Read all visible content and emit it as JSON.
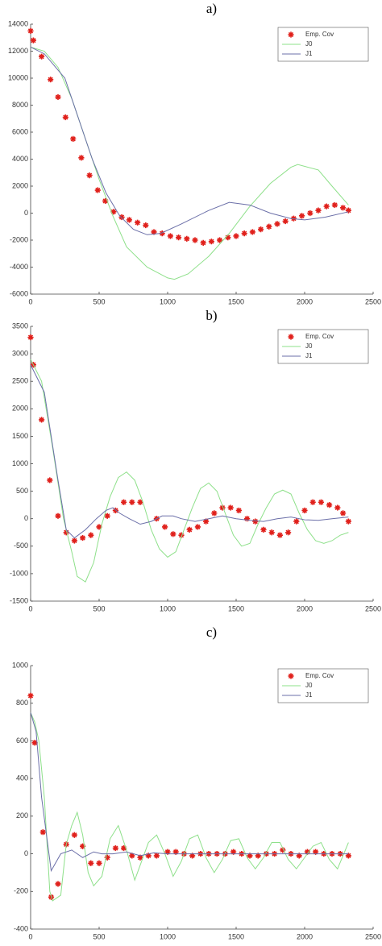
{
  "chart_data": [
    {
      "type": "line",
      "title": "a)",
      "xlim": [
        0,
        2500
      ],
      "ylim": [
        -6000,
        14000
      ],
      "xticks": [
        0,
        500,
        1000,
        1500,
        2000,
        2500
      ],
      "yticks": [
        -6000,
        -4000,
        -2000,
        0,
        2000,
        4000,
        6000,
        8000,
        10000,
        12000,
        14000
      ],
      "legend": "upper right",
      "series": [
        {
          "name": "Emp. Cov",
          "color": "#e0201b",
          "mode": "markers",
          "x": [
            0,
            20,
            80,
            145,
            200,
            255,
            310,
            370,
            430,
            490,
            545,
            605,
            665,
            720,
            780,
            840,
            900,
            960,
            1020,
            1080,
            1140,
            1200,
            1260,
            1320,
            1380,
            1440,
            1500,
            1560,
            1620,
            1680,
            1740,
            1800,
            1860,
            1920,
            1980,
            2040,
            2100,
            2160,
            2220,
            2280,
            2320
          ],
          "values": [
            13500,
            12800,
            11600,
            9900,
            8600,
            7100,
            5500,
            4100,
            2800,
            1700,
            900,
            100,
            -300,
            -500,
            -700,
            -900,
            -1400,
            -1500,
            -1700,
            -1800,
            -1900,
            -2000,
            -2200,
            -2100,
            -2000,
            -1800,
            -1700,
            -1500,
            -1400,
            -1200,
            -1000,
            -800,
            -600,
            -400,
            -200,
            0,
            200,
            500,
            600,
            400,
            200
          ]
        },
        {
          "name": "J0",
          "color": "#8ee08a",
          "mode": "lines",
          "x": [
            0,
            100,
            200,
            300,
            400,
            500,
            600,
            700,
            850,
            1000,
            1050,
            1150,
            1300,
            1450,
            1600,
            1750,
            1900,
            1950,
            2100,
            2200,
            2320
          ],
          "values": [
            12300,
            12000,
            10800,
            8500,
            5500,
            2500,
            -200,
            -2500,
            -4000,
            -4800,
            -4900,
            -4500,
            -3200,
            -1500,
            500,
            2200,
            3400,
            3600,
            3200,
            2000,
            600
          ]
        },
        {
          "name": "J1",
          "color": "#6b6fa8",
          "mode": "lines",
          "x": [
            0,
            100,
            250,
            350,
            450,
            550,
            650,
            750,
            850,
            950,
            1100,
            1300,
            1450,
            1600,
            1750,
            1900,
            2000,
            2150,
            2320
          ],
          "values": [
            12300,
            11800,
            10000,
            7000,
            4000,
            1500,
            -200,
            -1200,
            -1600,
            -1500,
            -800,
            200,
            800,
            600,
            0,
            -400,
            -500,
            -300,
            100
          ]
        }
      ]
    },
    {
      "type": "line",
      "title": "b)",
      "xlim": [
        0,
        2500
      ],
      "ylim": [
        -1500,
        3500
      ],
      "xticks": [
        0,
        500,
        1000,
        1500,
        2000,
        2500
      ],
      "yticks": [
        -1500,
        -1000,
        -500,
        0,
        500,
        1000,
        1500,
        2000,
        2500,
        3000,
        3500
      ],
      "legend": "upper right",
      "series": [
        {
          "name": "Emp. Cov",
          "color": "#e0201b",
          "mode": "markers",
          "x": [
            0,
            20,
            80,
            140,
            200,
            260,
            320,
            380,
            440,
            500,
            560,
            620,
            680,
            740,
            800,
            920,
            980,
            1040,
            1100,
            1160,
            1220,
            1280,
            1340,
            1400,
            1460,
            1520,
            1580,
            1640,
            1700,
            1760,
            1820,
            1880,
            1940,
            2000,
            2060,
            2120,
            2180,
            2240,
            2280,
            2320
          ],
          "values": [
            3300,
            2800,
            1800,
            700,
            50,
            -250,
            -400,
            -350,
            -300,
            -150,
            50,
            150,
            300,
            300,
            300,
            0,
            -150,
            -280,
            -300,
            -200,
            -150,
            -50,
            100,
            200,
            200,
            150,
            0,
            -50,
            -200,
            -250,
            -300,
            -250,
            -50,
            150,
            300,
            300,
            250,
            200,
            100,
            -50
          ]
        },
        {
          "name": "J0",
          "color": "#8ee08a",
          "mode": "lines",
          "x": [
            0,
            80,
            160,
            240,
            300,
            340,
            400,
            460,
            520,
            580,
            640,
            700,
            760,
            820,
            880,
            940,
            1000,
            1060,
            1120,
            1180,
            1240,
            1300,
            1360,
            1420,
            1480,
            1540,
            1600,
            1660,
            1720,
            1780,
            1840,
            1900,
            1960,
            2020,
            2080,
            2140,
            2200,
            2260,
            2320
          ],
          "values": [
            2900,
            2500,
            1300,
            0,
            -600,
            -1050,
            -1150,
            -800,
            -100,
            400,
            750,
            850,
            700,
            300,
            -200,
            -550,
            -700,
            -600,
            -200,
            200,
            550,
            650,
            500,
            100,
            -300,
            -500,
            -450,
            -100,
            200,
            450,
            520,
            450,
            100,
            -200,
            -400,
            -450,
            -400,
            -300,
            -250
          ]
        },
        {
          "name": "J1",
          "color": "#6b6fa8",
          "mode": "lines",
          "x": [
            0,
            100,
            200,
            260,
            320,
            400,
            480,
            550,
            600,
            650,
            720,
            800,
            880,
            960,
            1040,
            1100,
            1200,
            1300,
            1400,
            1500,
            1600,
            1700,
            1800,
            1900,
            2000,
            2100,
            2200,
            2320
          ],
          "values": [
            2800,
            2300,
            700,
            -200,
            -350,
            -200,
            0,
            150,
            200,
            100,
            0,
            -100,
            -50,
            50,
            50,
            0,
            -50,
            0,
            50,
            0,
            -30,
            -50,
            0,
            30,
            -20,
            -30,
            0,
            30
          ]
        }
      ]
    },
    {
      "type": "line",
      "title": "c)",
      "xlim": [
        0,
        2500
      ],
      "ylim": [
        -400,
        1000
      ],
      "xticks": [
        0,
        500,
        1000,
        1500,
        2000,
        2500
      ],
      "yticks": [
        -400,
        -200,
        0,
        200,
        400,
        600,
        800,
        1000
      ],
      "legend": "upper right",
      "series": [
        {
          "name": "Emp. Cov",
          "color": "#e0201b",
          "mode": "markers",
          "x": [
            0,
            30,
            90,
            150,
            200,
            260,
            320,
            380,
            440,
            500,
            560,
            620,
            680,
            740,
            800,
            860,
            920,
            1000,
            1060,
            1120,
            1180,
            1240,
            1300,
            1360,
            1420,
            1480,
            1540,
            1600,
            1660,
            1720,
            1780,
            1840,
            1900,
            1960,
            2020,
            2080,
            2140,
            2200,
            2260,
            2320
          ],
          "values": [
            840,
            590,
            115,
            -230,
            -160,
            50,
            100,
            40,
            -50,
            -50,
            -20,
            30,
            30,
            -10,
            -20,
            -10,
            -10,
            10,
            10,
            0,
            -10,
            0,
            0,
            0,
            0,
            10,
            0,
            -10,
            -10,
            0,
            0,
            20,
            0,
            -10,
            10,
            10,
            0,
            0,
            0,
            -10
          ]
        },
        {
          "name": "J0",
          "color": "#8ee08a",
          "mode": "lines",
          "x": [
            0,
            30,
            60,
            100,
            140,
            160,
            220,
            260,
            300,
            340,
            380,
            420,
            460,
            520,
            580,
            640,
            700,
            760,
            800,
            860,
            920,
            980,
            1040,
            1100,
            1160,
            1220,
            1280,
            1340,
            1400,
            1460,
            1520,
            1580,
            1640,
            1700,
            1760,
            1820,
            1880,
            1940,
            2000,
            2060,
            2120,
            2180,
            2240,
            2320
          ],
          "values": [
            750,
            700,
            600,
            300,
            -200,
            -250,
            -220,
            50,
            150,
            220,
            100,
            -100,
            -170,
            -120,
            80,
            150,
            20,
            -140,
            -60,
            60,
            100,
            0,
            -120,
            -40,
            80,
            100,
            -20,
            -100,
            -30,
            70,
            80,
            -20,
            -80,
            -20,
            60,
            60,
            -30,
            -80,
            -20,
            40,
            60,
            -30,
            -80,
            60
          ]
        },
        {
          "name": "J1",
          "color": "#6b6fa8",
          "mode": "lines",
          "x": [
            0,
            40,
            80,
            150,
            220,
            300,
            380,
            460,
            520,
            600,
            700,
            800,
            900,
            1000,
            1200,
            1500,
            1800,
            2100,
            2320
          ],
          "values": [
            750,
            650,
            300,
            -90,
            0,
            20,
            -20,
            10,
            0,
            0,
            10,
            -10,
            5,
            0,
            0,
            0,
            0,
            0,
            0
          ]
        }
      ]
    }
  ]
}
